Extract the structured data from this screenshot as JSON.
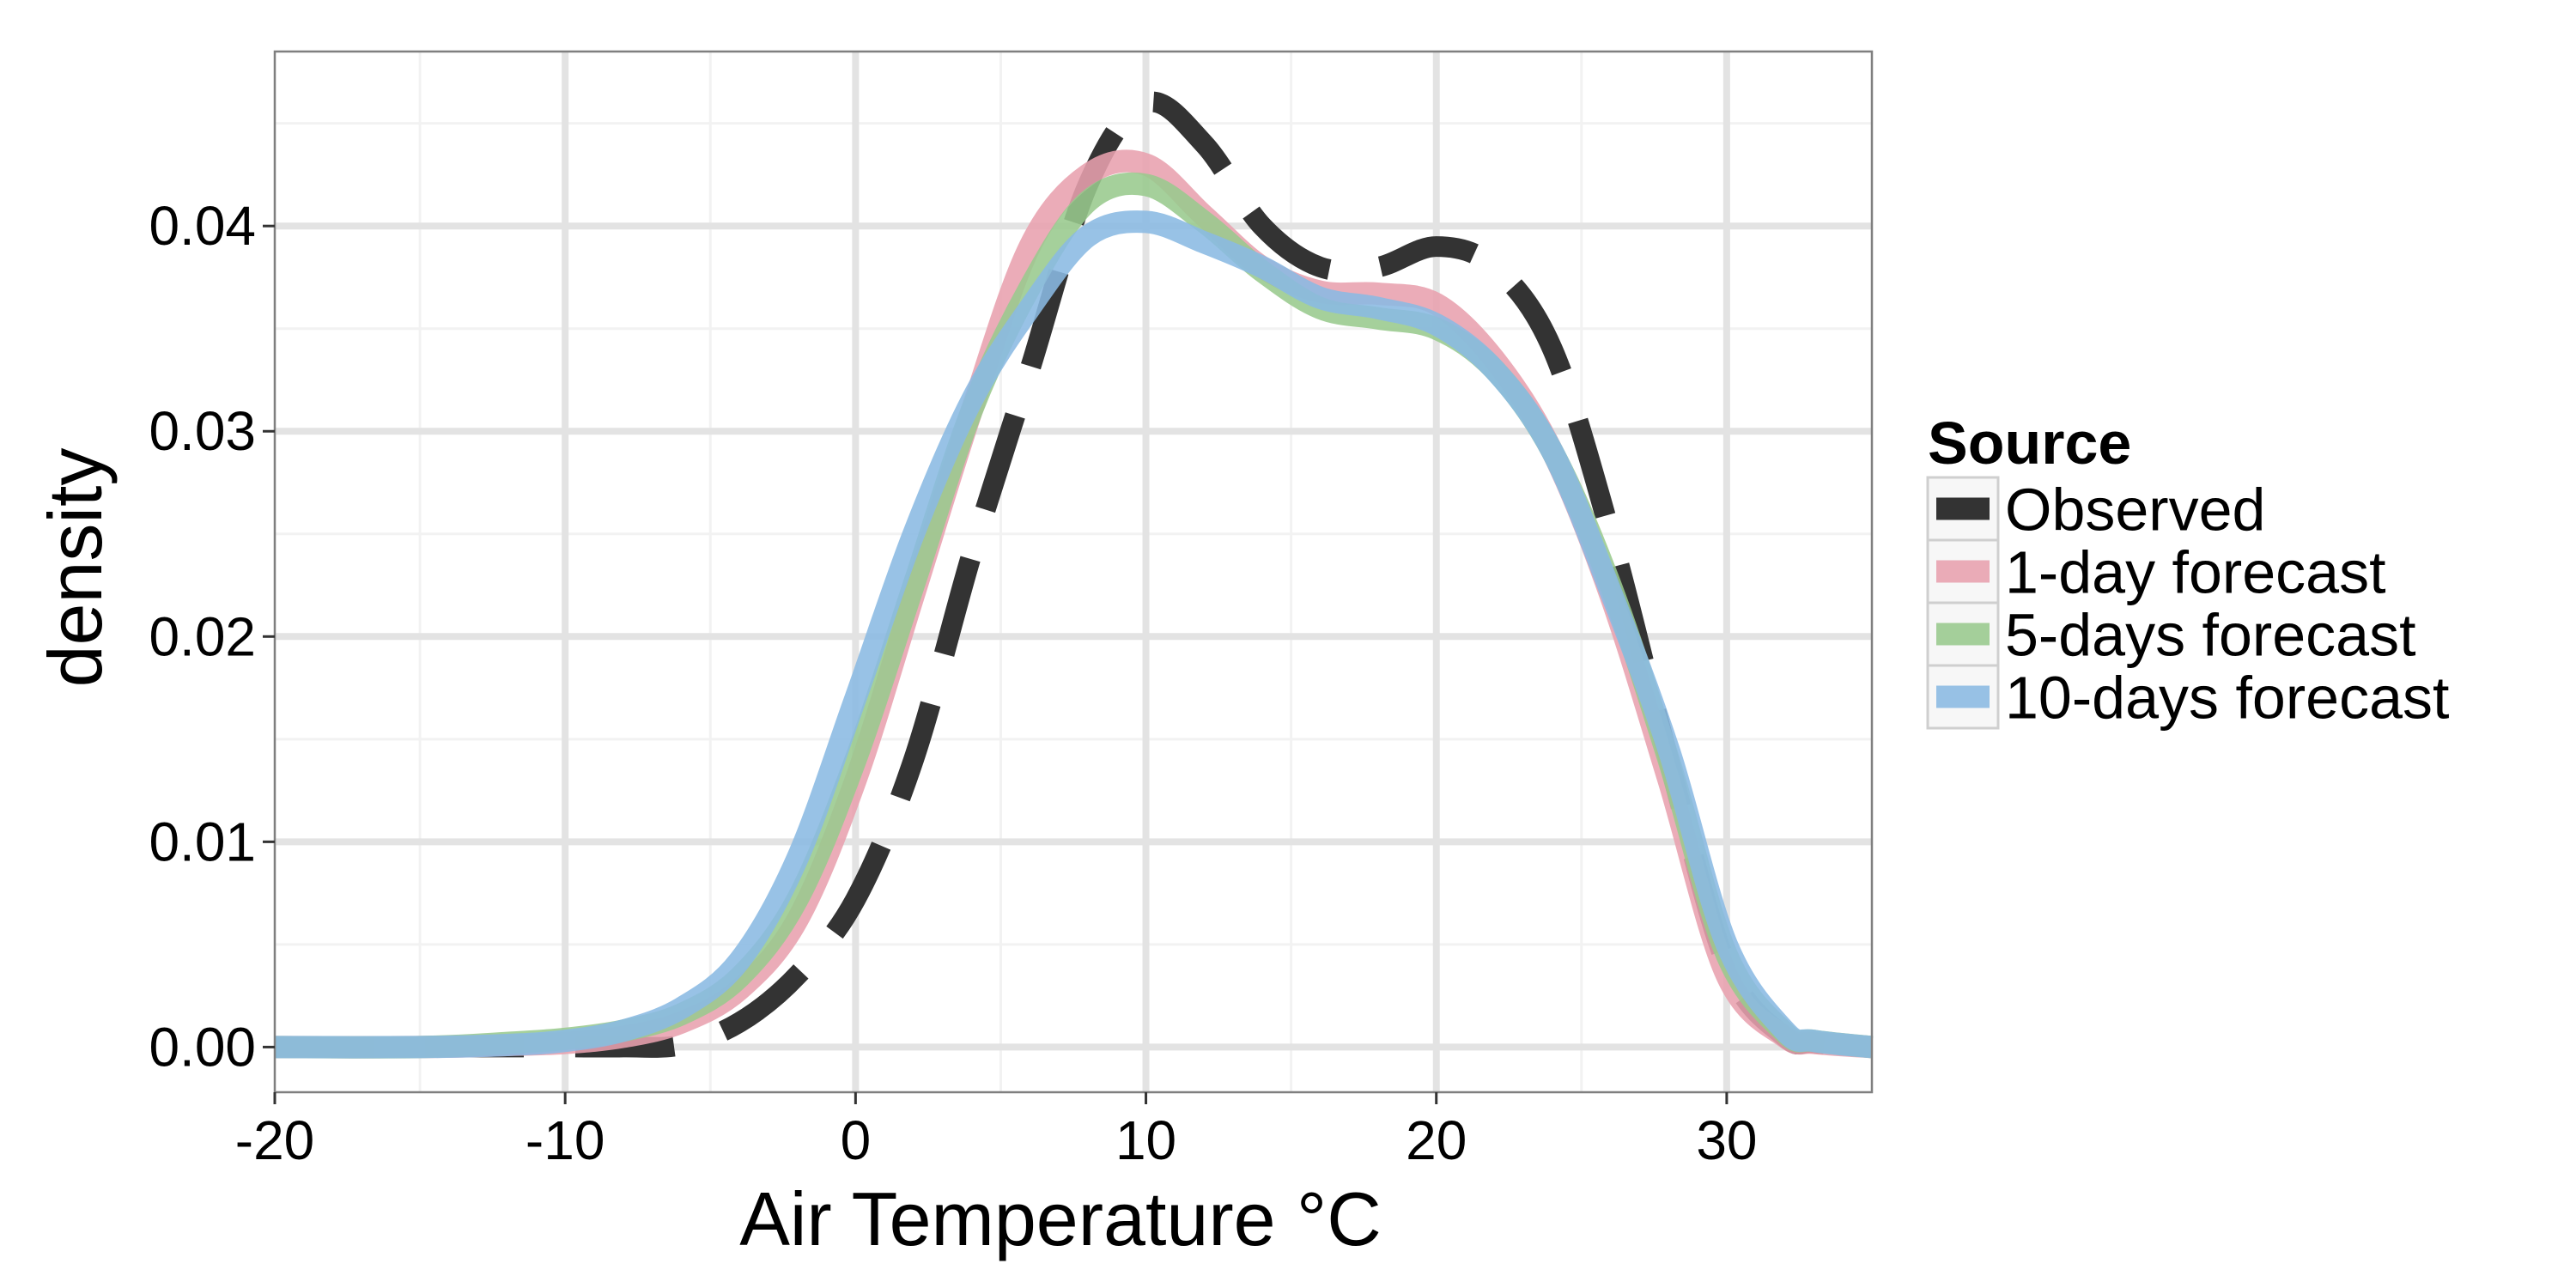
{
  "chart_data": {
    "type": "line",
    "title": "",
    "xlabel": "Air Temperature °C",
    "ylabel": "density",
    "xlim": [
      -20,
      35
    ],
    "ylim": [
      -0.0022,
      0.0485
    ],
    "x_ticks": [
      -20,
      -10,
      0,
      10,
      20,
      30
    ],
    "x_tick_labels": [
      "-20",
      "-10",
      "0",
      "10",
      "20",
      "30"
    ],
    "y_ticks": [
      0,
      0.01,
      0.02,
      0.03,
      0.04
    ],
    "y_tick_labels": [
      "0.00",
      "0.01",
      "0.02",
      "0.03",
      "0.04"
    ],
    "grid": true,
    "legend": {
      "title": "Source",
      "position": "right"
    },
    "x": [
      -20,
      -15,
      -12,
      -10,
      -8,
      -6,
      -4,
      -2,
      0,
      2,
      4,
      6,
      8,
      10,
      12,
      14,
      16,
      18,
      20,
      22,
      24,
      26,
      28,
      30,
      32,
      33,
      35
    ],
    "series": [
      {
        "name": "Observed",
        "color": "#333333",
        "dash": "dashed",
        "values": [
          0,
          0,
          0,
          0,
          0,
          0.0001,
          0.0012,
          0.0035,
          0.0072,
          0.014,
          0.024,
          0.033,
          0.042,
          0.046,
          0.044,
          0.04,
          0.038,
          0.038,
          0.039,
          0.038,
          0.034,
          0.025,
          0.014,
          0.004,
          0.0005,
          0.0002,
          0
        ]
      },
      {
        "name": "1-day forecast",
        "color": "#e8a0ae",
        "dash": "solid",
        "values": [
          0,
          0,
          0.0001,
          0.0002,
          0.0005,
          0.0012,
          0.0028,
          0.0062,
          0.013,
          0.022,
          0.031,
          0.039,
          0.0425,
          0.043,
          0.0405,
          0.038,
          0.0368,
          0.0367,
          0.0362,
          0.0335,
          0.029,
          0.022,
          0.013,
          0.0035,
          0.0005,
          0.0002,
          0
        ]
      },
      {
        "name": "5-days forecast",
        "color": "#99c98d",
        "dash": "solid",
        "values": [
          0,
          0,
          0.0002,
          0.0004,
          0.0008,
          0.0016,
          0.0034,
          0.0072,
          0.014,
          0.0225,
          0.031,
          0.037,
          0.0412,
          0.042,
          0.0402,
          0.0378,
          0.036,
          0.0355,
          0.035,
          0.033,
          0.029,
          0.0225,
          0.014,
          0.0045,
          0.0007,
          0.0003,
          0
        ]
      },
      {
        "name": "10-days forecast",
        "color": "#8ab9e2",
        "dash": "solid",
        "values": [
          0,
          0,
          0.0001,
          0.0003,
          0.0008,
          0.0019,
          0.0042,
          0.0092,
          0.017,
          0.025,
          0.0315,
          0.036,
          0.0395,
          0.0402,
          0.0392,
          0.038,
          0.0365,
          0.036,
          0.0352,
          0.033,
          0.029,
          0.0222,
          0.0145,
          0.005,
          0.0008,
          0.0003,
          0
        ]
      }
    ]
  }
}
